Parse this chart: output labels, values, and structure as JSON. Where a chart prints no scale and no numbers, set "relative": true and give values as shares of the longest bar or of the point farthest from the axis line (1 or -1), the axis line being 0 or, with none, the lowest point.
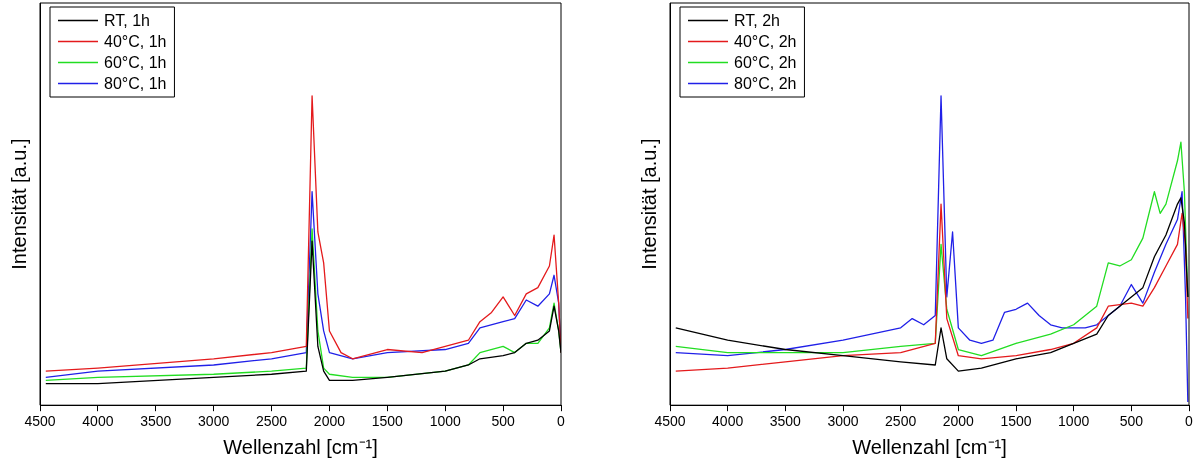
{
  "chart_data": [
    {
      "type": "line",
      "xlabel": "Wellenzahl [cm⁻¹]",
      "ylabel": "Intensität [a.u.]",
      "relative": true,
      "xlim": [
        4500,
        0
      ],
      "xticks": [
        4500,
        4000,
        3500,
        3000,
        2500,
        2000,
        1500,
        1000,
        500,
        0
      ],
      "legend": "top left",
      "marker": "none",
      "grid": false,
      "series": [
        {
          "name": "RT, 1h",
          "color": "#000000",
          "x": [
            4450,
            4000,
            3000,
            2500,
            2200,
            2150,
            2100,
            2050,
            2000,
            1800,
            1500,
            1000,
            800,
            700,
            500,
            400,
            300,
            200,
            100,
            60,
            20,
            0
          ],
          "values": [
            0.07,
            0.07,
            0.09,
            0.1,
            0.11,
            0.53,
            0.19,
            0.11,
            0.08,
            0.08,
            0.09,
            0.11,
            0.13,
            0.15,
            0.16,
            0.17,
            0.2,
            0.21,
            0.24,
            0.32,
            0.24,
            0.17
          ]
        },
        {
          "name": "40°C, 1h",
          "color": "#e41a1c",
          "x": [
            4450,
            4000,
            3000,
            2500,
            2200,
            2150,
            2100,
            2050,
            2000,
            1900,
            1800,
            1500,
            1200,
            1000,
            800,
            700,
            600,
            500,
            400,
            300,
            200,
            100,
            60,
            20,
            0
          ],
          "values": [
            0.11,
            0.12,
            0.15,
            0.17,
            0.19,
            1,
            0.56,
            0.46,
            0.24,
            0.17,
            0.15,
            0.18,
            0.17,
            0.19,
            0.21,
            0.27,
            0.3,
            0.35,
            0.29,
            0.36,
            0.38,
            0.45,
            0.55,
            0.33,
            0.17
          ]
        },
        {
          "name": "60°C, 1h",
          "color": "#22dd22",
          "x": [
            4450,
            4000,
            3000,
            2500,
            2200,
            2150,
            2100,
            2050,
            2000,
            1800,
            1500,
            1000,
            800,
            700,
            500,
            400,
            300,
            200,
            100,
            60,
            20,
            0
          ],
          "values": [
            0.08,
            0.09,
            0.1,
            0.11,
            0.12,
            0.57,
            0.24,
            0.12,
            0.1,
            0.09,
            0.09,
            0.11,
            0.13,
            0.17,
            0.19,
            0.17,
            0.2,
            0.2,
            0.25,
            0.33,
            0.24,
            0.17
          ]
        },
        {
          "name": "80°C, 1h",
          "color": "#2020e8",
          "x": [
            4450,
            4000,
            3000,
            2500,
            2200,
            2150,
            2100,
            2050,
            2000,
            1800,
            1500,
            1000,
            800,
            700,
            500,
            400,
            300,
            200,
            100,
            60,
            20,
            0
          ],
          "values": [
            0.09,
            0.11,
            0.13,
            0.15,
            0.17,
            0.69,
            0.36,
            0.24,
            0.17,
            0.15,
            0.17,
            0.18,
            0.2,
            0.25,
            0.27,
            0.28,
            0.34,
            0.32,
            0.36,
            0.42,
            0.33,
            0.17
          ]
        }
      ]
    },
    {
      "type": "line",
      "xlabel": "Wellenzahl [cm⁻¹]",
      "ylabel": "Intensität [a.u.]",
      "relative": true,
      "xlim": [
        4500,
        0
      ],
      "xticks": [
        4500,
        4000,
        3500,
        3000,
        2500,
        2000,
        1500,
        1000,
        500,
        0
      ],
      "legend": "top left",
      "marker": "none",
      "grid": false,
      "series": [
        {
          "name": "RT, 2h",
          "color": "#000000",
          "x": [
            4450,
            4000,
            3500,
            3000,
            2500,
            2200,
            2150,
            2100,
            2000,
            1800,
            1500,
            1200,
            1000,
            800,
            700,
            500,
            400,
            300,
            200,
            100,
            70,
            40,
            10
          ],
          "values": [
            0.25,
            0.21,
            0.18,
            0.16,
            0.14,
            0.13,
            0.25,
            0.15,
            0.11,
            0.12,
            0.15,
            0.17,
            0.2,
            0.23,
            0.29,
            0.35,
            0.38,
            0.48,
            0.55,
            0.65,
            0.67,
            0.59,
            0.35
          ]
        },
        {
          "name": "40°C, 2h",
          "color": "#e41a1c",
          "x": [
            4450,
            4000,
            3500,
            3000,
            2500,
            2200,
            2150,
            2100,
            2000,
            1800,
            1500,
            1200,
            1000,
            800,
            700,
            500,
            400,
            300,
            200,
            100,
            60,
            30,
            10
          ],
          "values": [
            0.11,
            0.12,
            0.14,
            0.16,
            0.17,
            0.2,
            0.65,
            0.28,
            0.16,
            0.15,
            0.16,
            0.18,
            0.2,
            0.25,
            0.32,
            0.33,
            0.32,
            0.38,
            0.45,
            0.52,
            0.62,
            0.52,
            0.28
          ]
        },
        {
          "name": "60°C, 2h",
          "color": "#22dd22",
          "x": [
            4450,
            4000,
            3500,
            3000,
            2500,
            2200,
            2150,
            2100,
            2000,
            1800,
            1500,
            1200,
            1000,
            800,
            700,
            600,
            500,
            400,
            300,
            250,
            200,
            100,
            70,
            40,
            10
          ],
          "values": [
            0.19,
            0.17,
            0.17,
            0.17,
            0.19,
            0.2,
            0.52,
            0.31,
            0.18,
            0.16,
            0.2,
            0.23,
            0.26,
            0.32,
            0.46,
            0.45,
            0.47,
            0.54,
            0.69,
            0.62,
            0.65,
            0.79,
            0.85,
            0.69,
            0.35
          ]
        },
        {
          "name": "80°C, 2h",
          "color": "#2020e8",
          "x": [
            4450,
            4000,
            3500,
            3000,
            2500,
            2400,
            2300,
            2200,
            2150,
            2100,
            2050,
            2000,
            1900,
            1800,
            1700,
            1600,
            1500,
            1400,
            1300,
            1200,
            1100,
            1000,
            900,
            800,
            700,
            600,
            500,
            400,
            300,
            200,
            100,
            60,
            30,
            10
          ],
          "values": [
            0.17,
            0.16,
            0.18,
            0.21,
            0.25,
            0.28,
            0.26,
            0.29,
            1,
            0.35,
            0.56,
            0.25,
            0.21,
            0.2,
            0.21,
            0.3,
            0.31,
            0.33,
            0.29,
            0.26,
            0.25,
            0.25,
            0.25,
            0.26,
            0.29,
            0.32,
            0.39,
            0.33,
            0.43,
            0.52,
            0.6,
            0.69,
            0.35,
            0.01
          ]
        }
      ]
    }
  ]
}
